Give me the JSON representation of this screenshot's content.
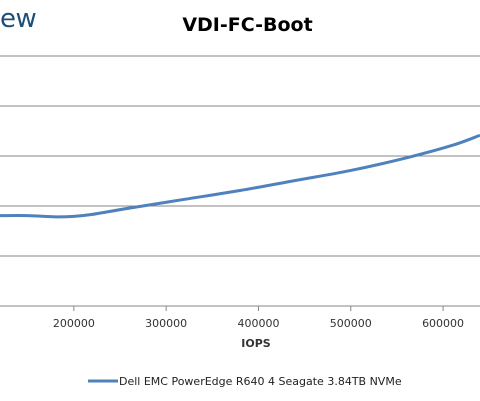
{
  "header": {
    "logo_fragment": "ew"
  },
  "chart_data": {
    "type": "line",
    "title": "VDI-FC-Boot",
    "xlabel": "IOPS",
    "ylabel": "",
    "x_ticks": [
      200000,
      300000,
      400000,
      500000,
      600000
    ],
    "x_tick_labels": [
      "200000",
      "300000",
      "400000",
      "500000",
      "600000"
    ],
    "xlim": [
      120000,
      640000
    ],
    "grid": true,
    "legend_position": "bottom",
    "series": [
      {
        "name": "Dell EMC PowerEdge R640 4 Seagate 3.84TB NVMe",
        "color": "#4f81bd",
        "x": [
          120000,
          150000,
          180000,
          200000,
          220000,
          260000,
          320000,
          380000,
          440000,
          500000,
          560000,
          610000,
          640000
        ],
        "y": [
          0.36,
          0.36,
          0.355,
          0.357,
          0.365,
          0.39,
          0.425,
          0.46,
          0.5,
          0.54,
          0.59,
          0.64,
          0.68
        ]
      }
    ]
  }
}
